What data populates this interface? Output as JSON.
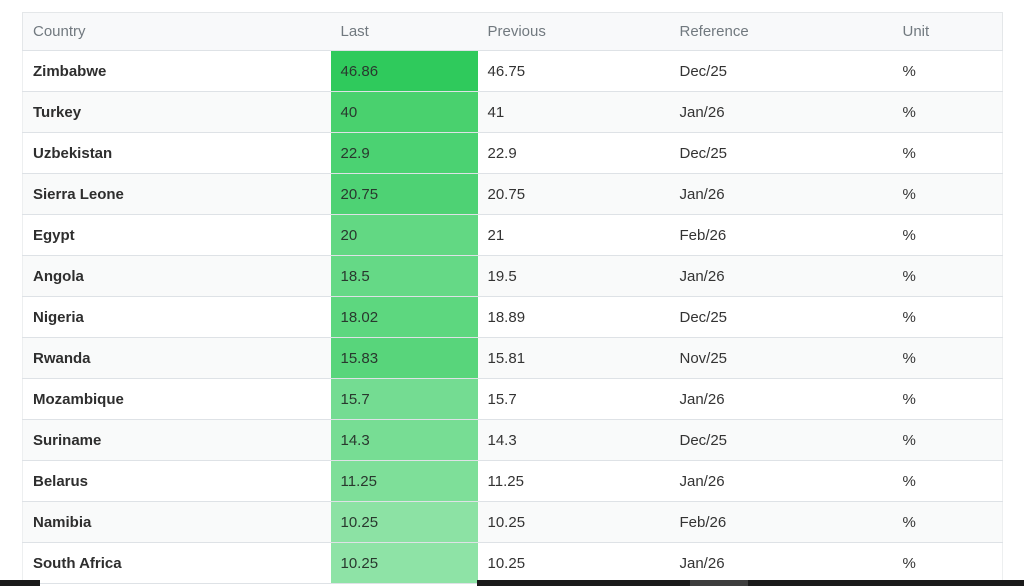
{
  "chart_data": {
    "type": "table",
    "columns": [
      "Country",
      "Last",
      "Previous",
      "Reference",
      "Unit"
    ],
    "rows": [
      {
        "country": "Zimbabwe",
        "last": "46.86",
        "previous": "46.75",
        "reference": "Dec/25",
        "unit": "%",
        "last_bg": "#2fca5c"
      },
      {
        "country": "Turkey",
        "last": "40",
        "previous": "41",
        "reference": "Jan/26",
        "unit": "%",
        "last_bg": "#49d16e"
      },
      {
        "country": "Uzbekistan",
        "last": "22.9",
        "previous": "22.9",
        "reference": "Dec/25",
        "unit": "%",
        "last_bg": "#4bd272"
      },
      {
        "country": "Sierra Leone",
        "last": "20.75",
        "previous": "20.75",
        "reference": "Jan/26",
        "unit": "%",
        "last_bg": "#4ed274"
      },
      {
        "country": "Egypt",
        "last": "20",
        "previous": "21",
        "reference": "Feb/26",
        "unit": "%",
        "last_bg": "#62d883"
      },
      {
        "country": "Angola",
        "last": "18.5",
        "previous": "19.5",
        "reference": "Jan/26",
        "unit": "%",
        "last_bg": "#65d986"
      },
      {
        "country": "Nigeria",
        "last": "18.02",
        "previous": "18.89",
        "reference": "Dec/25",
        "unit": "%",
        "last_bg": "#5dd77f"
      },
      {
        "country": "Rwanda",
        "last": "15.83",
        "previous": "15.81",
        "reference": "Nov/25",
        "unit": "%",
        "last_bg": "#58d57b"
      },
      {
        "country": "Mozambique",
        "last": "15.7",
        "previous": "15.7",
        "reference": "Jan/26",
        "unit": "%",
        "last_bg": "#74dc92"
      },
      {
        "country": "Suriname",
        "last": "14.3",
        "previous": "14.3",
        "reference": "Dec/25",
        "unit": "%",
        "last_bg": "#77dd94"
      },
      {
        "country": "Belarus",
        "last": "11.25",
        "previous": "11.25",
        "reference": "Jan/26",
        "unit": "%",
        "last_bg": "#7edf99"
      },
      {
        "country": "Namibia",
        "last": "10.25",
        "previous": "10.25",
        "reference": "Feb/26",
        "unit": "%",
        "last_bg": "#8ce2a4"
      },
      {
        "country": "South Africa",
        "last": "10.25",
        "previous": "10.25",
        "reference": "Jan/26",
        "unit": "%",
        "last_bg": "#8ee3a6"
      }
    ]
  },
  "colors": {
    "header_bg": "#f8f9fa",
    "header_text": "#71797f",
    "row_alt_bg": "#f9fafa",
    "row_border": "#dee2e6",
    "cell_text": "#333333",
    "bottom_bar": "#1a1a1a"
  }
}
